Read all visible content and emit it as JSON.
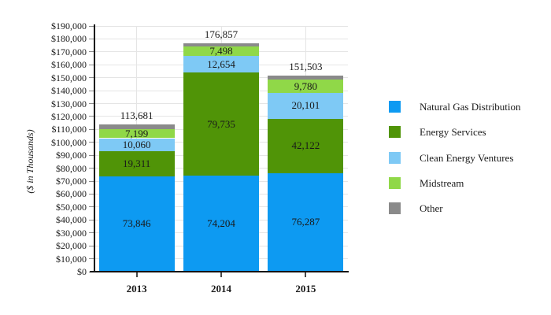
{
  "chart_data": {
    "type": "bar",
    "stacked": true,
    "title": "",
    "xlabel": "",
    "ylabel": "($ in Thousands)",
    "categories": [
      "2013",
      "2014",
      "2015"
    ],
    "series": [
      {
        "name": "Natural Gas Distribution",
        "color": "#0D9AF2",
        "values": [
          73846,
          74204,
          76287
        ],
        "show_labels": true
      },
      {
        "name": "Energy Services",
        "color": "#509407",
        "values": [
          19311,
          79735,
          42122
        ],
        "show_labels": true
      },
      {
        "name": "Clean Energy Ventures",
        "color": "#7EC9F5",
        "values": [
          10060,
          12654,
          20101
        ],
        "show_labels": true
      },
      {
        "name": "Midstream",
        "color": "#90D848",
        "values": [
          7199,
          7498,
          9780
        ],
        "show_labels": true
      },
      {
        "name": "Other",
        "color": "#8A8A8A",
        "values": [
          3265,
          2766,
          3213
        ],
        "show_labels": false
      }
    ],
    "totals": [
      113681,
      176857,
      151503
    ],
    "total_labels": [
      "113,681",
      "176,857",
      "151,503"
    ],
    "segment_labels": {
      "2013": [
        "73,846",
        "19,311",
        "10,060",
        "7,199"
      ],
      "2014": [
        "74,204",
        "79,735",
        "12,654",
        "7,498"
      ],
      "2015": [
        "76,287",
        "42,122",
        "20,101",
        "9,780"
      ]
    },
    "ylim": [
      0,
      190000
    ],
    "ytick_step": 10000,
    "ytick_prefix": "$",
    "ytick_labels": [
      "$0",
      "$10,000",
      "$20,000",
      "$30,000",
      "$40,000",
      "$50,000",
      "$60,000",
      "$70,000",
      "$80,000",
      "$90,000",
      "$100,000",
      "$110,000",
      "$120,000",
      "$130,000",
      "$140,000",
      "$150,000",
      "$160,000",
      "$170,000",
      "$180,000",
      "$190,000"
    ],
    "grid": true,
    "legend_position": "right",
    "legend_items": [
      "Natural Gas Distribution",
      "Energy Services",
      "Clean Energy Ventures",
      "Midstream",
      "Other"
    ],
    "colors": {
      "natural_gas_distribution": "#0D9AF2",
      "energy_services": "#509407",
      "clean_energy_ventures": "#7EC9F5",
      "midstream": "#90D848",
      "other": "#8A8A8A",
      "gridline": "#E5E5E5",
      "axis": "#141414"
    }
  }
}
